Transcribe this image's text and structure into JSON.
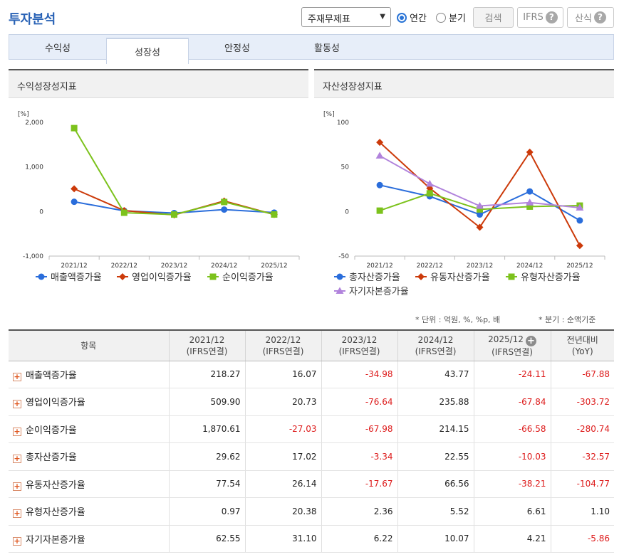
{
  "header": {
    "title": "투자분석",
    "report_select": "주재무제표",
    "period_options": [
      {
        "label": "연간",
        "selected": true
      },
      {
        "label": "분기",
        "selected": false
      }
    ],
    "search_button": "검색",
    "ifrs_button": "IFRS",
    "formula_button": "산식",
    "help_glyph": "?"
  },
  "tabs": [
    {
      "label": "수익성",
      "active": false
    },
    {
      "label": "성장성",
      "active": true
    },
    {
      "label": "안정성",
      "active": false
    },
    {
      "label": "활동성",
      "active": false
    }
  ],
  "charts": {
    "left_title": "수익성장성지표",
    "right_title": "자산성장성지표"
  },
  "chart_data": [
    {
      "type": "line",
      "title": "수익성장성지표",
      "ylabel": "[%]",
      "categories": [
        "2021/12",
        "2022/12",
        "2023/12",
        "2024/12",
        "2025/12"
      ],
      "ylim": [
        -1000,
        2000
      ],
      "yticks": [
        "2,000",
        "1,000",
        "0",
        "-1,000"
      ],
      "ytick_values": [
        2000,
        1000,
        0,
        -1000
      ],
      "legend_position": "bottom",
      "series": [
        {
          "name": "매출액증가율",
          "color": "#2a6ddb",
          "marker": "circle",
          "values": [
            218.27,
            16.07,
            -34.98,
            43.77,
            -24.11
          ]
        },
        {
          "name": "영업이익증가율",
          "color": "#cc3a0a",
          "marker": "diamond",
          "values": [
            509.9,
            20.73,
            -76.64,
            235.88,
            -67.84
          ]
        },
        {
          "name": "순이익증가율",
          "color": "#7cc21c",
          "marker": "square",
          "values": [
            1870.61,
            -27.03,
            -67.98,
            214.15,
            -66.58
          ]
        }
      ]
    },
    {
      "type": "line",
      "title": "자산성장성지표",
      "ylabel": "[%]",
      "categories": [
        "2021/12",
        "2022/12",
        "2023/12",
        "2024/12",
        "2025/12"
      ],
      "ylim": [
        -50,
        100
      ],
      "yticks": [
        "100",
        "50",
        "0",
        "-50"
      ],
      "ytick_values": [
        100,
        50,
        0,
        -50
      ],
      "legend_position": "bottom",
      "series": [
        {
          "name": "총자산증가율",
          "color": "#2a6ddb",
          "marker": "circle",
          "values": [
            29.62,
            17.02,
            -3.34,
            22.55,
            -10.03
          ]
        },
        {
          "name": "유동자산증가율",
          "color": "#cc3a0a",
          "marker": "diamond",
          "values": [
            77.54,
            26.14,
            -17.67,
            66.56,
            -38.21
          ]
        },
        {
          "name": "유형자산증가율",
          "color": "#7cc21c",
          "marker": "square",
          "values": [
            0.97,
            20.38,
            2.36,
            5.52,
            6.61
          ]
        },
        {
          "name": "자기자본증가율",
          "color": "#b183dc",
          "marker": "triangle",
          "values": [
            62.55,
            31.1,
            6.22,
            10.07,
            4.21
          ]
        }
      ]
    }
  ],
  "notes": {
    "unit": "* 단위 : 억원, %, %p, 배",
    "quarter": "* 분기 : 순액기준"
  },
  "table": {
    "item_header": "항목",
    "columns": [
      {
        "year": "2021/12",
        "sub": "(IFRS연결)"
      },
      {
        "year": "2022/12",
        "sub": "(IFRS연결)"
      },
      {
        "year": "2023/12",
        "sub": "(IFRS연결)"
      },
      {
        "year": "2024/12",
        "sub": "(IFRS연결)"
      },
      {
        "year": "2025/12",
        "sub": "(IFRS연결)"
      }
    ],
    "yoy_header": "전년대비",
    "yoy_sub": "(YoY)",
    "expand_glyph": "+",
    "rows": [
      {
        "label": "매출액증가율",
        "values": [
          "218.27",
          "16.07",
          "-34.98",
          "43.77",
          "-24.11",
          "-67.88"
        ]
      },
      {
        "label": "영업이익증가율",
        "values": [
          "509.90",
          "20.73",
          "-76.64",
          "235.88",
          "-67.84",
          "-303.72"
        ]
      },
      {
        "label": "순이익증가율",
        "values": [
          "1,870.61",
          "-27.03",
          "-67.98",
          "214.15",
          "-66.58",
          "-280.74"
        ]
      },
      {
        "label": "총자산증가율",
        "values": [
          "29.62",
          "17.02",
          "-3.34",
          "22.55",
          "-10.03",
          "-32.57"
        ]
      },
      {
        "label": "유동자산증가율",
        "values": [
          "77.54",
          "26.14",
          "-17.67",
          "66.56",
          "-38.21",
          "-104.77"
        ]
      },
      {
        "label": "유형자산증가율",
        "values": [
          "0.97",
          "20.38",
          "2.36",
          "5.52",
          "6.61",
          "1.10"
        ]
      },
      {
        "label": "자기자본증가율",
        "values": [
          "62.55",
          "31.10",
          "6.22",
          "10.07",
          "4.21",
          "-5.86"
        ]
      }
    ]
  }
}
